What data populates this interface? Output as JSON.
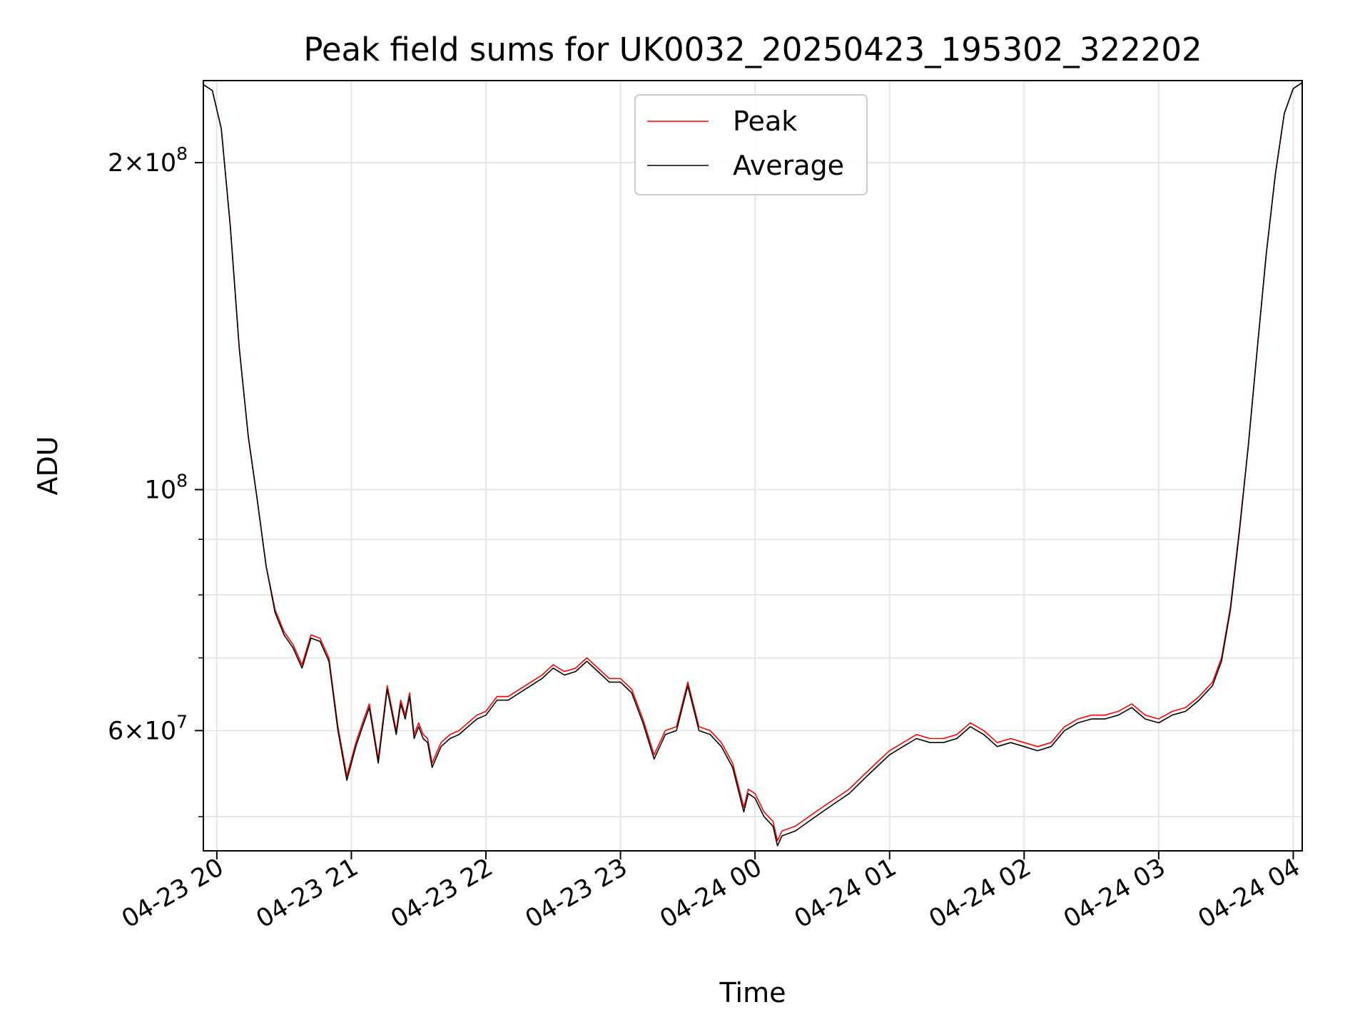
{
  "chart_data": {
    "type": "line",
    "title": "Peak field sums for UK0032_20250423_195302_322202",
    "xlabel": "Time",
    "ylabel": "ADU",
    "y_scale": "log",
    "ylim": [
      46500000,
      238000000
    ],
    "xlim": [
      "2025-04-23 19:54",
      "2025-04-24 04:04"
    ],
    "grid": true,
    "legend_position": "upper center",
    "x_ticks": [
      {
        "t": "2025-04-23 20:00",
        "label": "04-23 20"
      },
      {
        "t": "2025-04-23 21:00",
        "label": "04-23 21"
      },
      {
        "t": "2025-04-23 22:00",
        "label": "04-23 22"
      },
      {
        "t": "2025-04-23 23:00",
        "label": "04-23 23"
      },
      {
        "t": "2025-04-24 00:00",
        "label": "04-24 00"
      },
      {
        "t": "2025-04-24 01:00",
        "label": "04-24 01"
      },
      {
        "t": "2025-04-24 02:00",
        "label": "04-24 02"
      },
      {
        "t": "2025-04-24 03:00",
        "label": "04-24 03"
      },
      {
        "t": "2025-04-24 04:00",
        "label": "04-24 04"
      }
    ],
    "y_major_ticks": [
      {
        "v": 60000000,
        "base": "6",
        "exp": "7"
      },
      {
        "v": 100000000,
        "base": "",
        "exp": "8"
      },
      {
        "v": 200000000,
        "base": "2",
        "exp": "8"
      }
    ],
    "y_minor_ticks": [
      50000000,
      70000000,
      80000000,
      90000000
    ],
    "series": [
      {
        "name": "Peak",
        "color": "#ff0000",
        "x": [
          "2025-04-23 19:54",
          "2025-04-23 19:58",
          "2025-04-23 20:02",
          "2025-04-23 20:06",
          "2025-04-23 20:10",
          "2025-04-23 20:14",
          "2025-04-23 20:18",
          "2025-04-23 20:22",
          "2025-04-23 20:26",
          "2025-04-23 20:30",
          "2025-04-23 20:34",
          "2025-04-23 20:38",
          "2025-04-23 20:42",
          "2025-04-23 20:46",
          "2025-04-23 20:50",
          "2025-04-23 20:54",
          "2025-04-23 20:58",
          "2025-04-23 21:02",
          "2025-04-23 21:05",
          "2025-04-23 21:08",
          "2025-04-23 21:12",
          "2025-04-23 21:16",
          "2025-04-23 21:20",
          "2025-04-23 21:22",
          "2025-04-23 21:24",
          "2025-04-23 21:26",
          "2025-04-23 21:28",
          "2025-04-23 21:30",
          "2025-04-23 21:32",
          "2025-04-23 21:34",
          "2025-04-23 21:36",
          "2025-04-23 21:40",
          "2025-04-23 21:44",
          "2025-04-23 21:48",
          "2025-04-23 21:52",
          "2025-04-23 21:56",
          "2025-04-23 22:00",
          "2025-04-23 22:05",
          "2025-04-23 22:10",
          "2025-04-23 22:15",
          "2025-04-23 22:20",
          "2025-04-23 22:25",
          "2025-04-23 22:30",
          "2025-04-23 22:35",
          "2025-04-23 22:40",
          "2025-04-23 22:45",
          "2025-04-23 22:50",
          "2025-04-23 22:55",
          "2025-04-23 23:00",
          "2025-04-23 23:05",
          "2025-04-23 23:10",
          "2025-04-23 23:15",
          "2025-04-23 23:20",
          "2025-04-23 23:25",
          "2025-04-23 23:30",
          "2025-04-23 23:35",
          "2025-04-23 23:40",
          "2025-04-23 23:45",
          "2025-04-23 23:50",
          "2025-04-23 23:55",
          "2025-04-23 23:57",
          "2025-04-24 00:00",
          "2025-04-24 00:04",
          "2025-04-24 00:08",
          "2025-04-24 00:10",
          "2025-04-24 00:12",
          "2025-04-24 00:18",
          "2025-04-24 00:24",
          "2025-04-24 00:30",
          "2025-04-24 00:36",
          "2025-04-24 00:42",
          "2025-04-24 00:48",
          "2025-04-24 00:54",
          "2025-04-24 01:00",
          "2025-04-24 01:06",
          "2025-04-24 01:12",
          "2025-04-24 01:18",
          "2025-04-24 01:24",
          "2025-04-24 01:30",
          "2025-04-24 01:36",
          "2025-04-24 01:42",
          "2025-04-24 01:48",
          "2025-04-24 01:54",
          "2025-04-24 02:00",
          "2025-04-24 02:06",
          "2025-04-24 02:12",
          "2025-04-24 02:18",
          "2025-04-24 02:24",
          "2025-04-24 02:30",
          "2025-04-24 02:36",
          "2025-04-24 02:42",
          "2025-04-24 02:48",
          "2025-04-24 02:54",
          "2025-04-24 03:00",
          "2025-04-24 03:06",
          "2025-04-24 03:12",
          "2025-04-24 03:18",
          "2025-04-24 03:24",
          "2025-04-24 03:28",
          "2025-04-24 03:32",
          "2025-04-24 03:36",
          "2025-04-24 03:40",
          "2025-04-24 03:44",
          "2025-04-24 03:48",
          "2025-04-24 03:52",
          "2025-04-24 03:56",
          "2025-04-24 04:00",
          "2025-04-24 04:04"
        ],
        "y": [
          236000000,
          233000000,
          215000000,
          175000000,
          135000000,
          112000000,
          98000000,
          85000000,
          77500000,
          74000000,
          72000000,
          69000000,
          73500000,
          73000000,
          70000000,
          60500000,
          54500000,
          58500000,
          61000000,
          63500000,
          56500000,
          66000000,
          60000000,
          64000000,
          62000000,
          65000000,
          59500000,
          61000000,
          59500000,
          59000000,
          56000000,
          58500000,
          59500000,
          60000000,
          61000000,
          62000000,
          62500000,
          64500000,
          64500000,
          65500000,
          66500000,
          67500000,
          69000000,
          68000000,
          68500000,
          70000000,
          68500000,
          67000000,
          67000000,
          65500000,
          61500000,
          57000000,
          60000000,
          60500000,
          66500000,
          60500000,
          60000000,
          58500000,
          56000000,
          51000000,
          53000000,
          52500000,
          50500000,
          49500000,
          47500000,
          48500000,
          49000000,
          50000000,
          51000000,
          52000000,
          53000000,
          54500000,
          56000000,
          57500000,
          58500000,
          59500000,
          59000000,
          59000000,
          59500000,
          61000000,
          60000000,
          58500000,
          59000000,
          58500000,
          58000000,
          58500000,
          60500000,
          61500000,
          62000000,
          62000000,
          62500000,
          63500000,
          62000000,
          61500000,
          62500000,
          63000000,
          64500000,
          66500000,
          70000000,
          78000000,
          92000000,
          110000000,
          135000000,
          165000000,
          195000000,
          222000000,
          234000000,
          237000000
        ]
      },
      {
        "name": "Average",
        "color": "#000000",
        "x": [
          "2025-04-23 19:54",
          "2025-04-23 19:58",
          "2025-04-23 20:02",
          "2025-04-23 20:06",
          "2025-04-23 20:10",
          "2025-04-23 20:14",
          "2025-04-23 20:18",
          "2025-04-23 20:22",
          "2025-04-23 20:26",
          "2025-04-23 20:30",
          "2025-04-23 20:34",
          "2025-04-23 20:38",
          "2025-04-23 20:42",
          "2025-04-23 20:46",
          "2025-04-23 20:50",
          "2025-04-23 20:54",
          "2025-04-23 20:58",
          "2025-04-23 21:02",
          "2025-04-23 21:05",
          "2025-04-23 21:08",
          "2025-04-23 21:12",
          "2025-04-23 21:16",
          "2025-04-23 21:20",
          "2025-04-23 21:22",
          "2025-04-23 21:24",
          "2025-04-23 21:26",
          "2025-04-23 21:28",
          "2025-04-23 21:30",
          "2025-04-23 21:32",
          "2025-04-23 21:34",
          "2025-04-23 21:36",
          "2025-04-23 21:40",
          "2025-04-23 21:44",
          "2025-04-23 21:48",
          "2025-04-23 21:52",
          "2025-04-23 21:56",
          "2025-04-23 22:00",
          "2025-04-23 22:05",
          "2025-04-23 22:10",
          "2025-04-23 22:15",
          "2025-04-23 22:20",
          "2025-04-23 22:25",
          "2025-04-23 22:30",
          "2025-04-23 22:35",
          "2025-04-23 22:40",
          "2025-04-23 22:45",
          "2025-04-23 22:50",
          "2025-04-23 22:55",
          "2025-04-23 23:00",
          "2025-04-23 23:05",
          "2025-04-23 23:10",
          "2025-04-23 23:15",
          "2025-04-23 23:20",
          "2025-04-23 23:25",
          "2025-04-23 23:30",
          "2025-04-23 23:35",
          "2025-04-23 23:40",
          "2025-04-23 23:45",
          "2025-04-23 23:50",
          "2025-04-23 23:55",
          "2025-04-23 23:57",
          "2025-04-24 00:00",
          "2025-04-24 00:04",
          "2025-04-24 00:08",
          "2025-04-24 00:10",
          "2025-04-24 00:12",
          "2025-04-24 00:18",
          "2025-04-24 00:24",
          "2025-04-24 00:30",
          "2025-04-24 00:36",
          "2025-04-24 00:42",
          "2025-04-24 00:48",
          "2025-04-24 00:54",
          "2025-04-24 01:00",
          "2025-04-24 01:06",
          "2025-04-24 01:12",
          "2025-04-24 01:18",
          "2025-04-24 01:24",
          "2025-04-24 01:30",
          "2025-04-24 01:36",
          "2025-04-24 01:42",
          "2025-04-24 01:48",
          "2025-04-24 01:54",
          "2025-04-24 02:00",
          "2025-04-24 02:06",
          "2025-04-24 02:12",
          "2025-04-24 02:18",
          "2025-04-24 02:24",
          "2025-04-24 02:30",
          "2025-04-24 02:36",
          "2025-04-24 02:42",
          "2025-04-24 02:48",
          "2025-04-24 02:54",
          "2025-04-24 03:00",
          "2025-04-24 03:06",
          "2025-04-24 03:12",
          "2025-04-24 03:18",
          "2025-04-24 03:24",
          "2025-04-24 03:28",
          "2025-04-24 03:32",
          "2025-04-24 03:36",
          "2025-04-24 03:40",
          "2025-04-24 03:44",
          "2025-04-24 03:48",
          "2025-04-24 03:52",
          "2025-04-24 03:56",
          "2025-04-24 04:00",
          "2025-04-24 04:04"
        ],
        "y": [
          236000000,
          233000000,
          215000000,
          175000000,
          135000000,
          112000000,
          98000000,
          85000000,
          77000000,
          73500000,
          71500000,
          68500000,
          73000000,
          72500000,
          69500000,
          60000000,
          54000000,
          58000000,
          60500000,
          63000000,
          56000000,
          65500000,
          59500000,
          63500000,
          61500000,
          64500000,
          59000000,
          60500000,
          59000000,
          58500000,
          55500000,
          58000000,
          59000000,
          59500000,
          60500000,
          61500000,
          62000000,
          64000000,
          64000000,
          65000000,
          66000000,
          67000000,
          68500000,
          67500000,
          68000000,
          69500000,
          68000000,
          66500000,
          66500000,
          65000000,
          61000000,
          56500000,
          59500000,
          60000000,
          66000000,
          60000000,
          59500000,
          58000000,
          55500000,
          50500000,
          52500000,
          52000000,
          50000000,
          49000000,
          47000000,
          48000000,
          48500000,
          49500000,
          50500000,
          51500000,
          52500000,
          54000000,
          55500000,
          57000000,
          58000000,
          59000000,
          58500000,
          58500000,
          59000000,
          60500000,
          59500000,
          58000000,
          58500000,
          58000000,
          57500000,
          58000000,
          60000000,
          61000000,
          61500000,
          61500000,
          62000000,
          63000000,
          61500000,
          61000000,
          62000000,
          62500000,
          64000000,
          66000000,
          69500000,
          77500000,
          91500000,
          110000000,
          135000000,
          165000000,
          195000000,
          222000000,
          234000000,
          237000000
        ]
      }
    ]
  }
}
